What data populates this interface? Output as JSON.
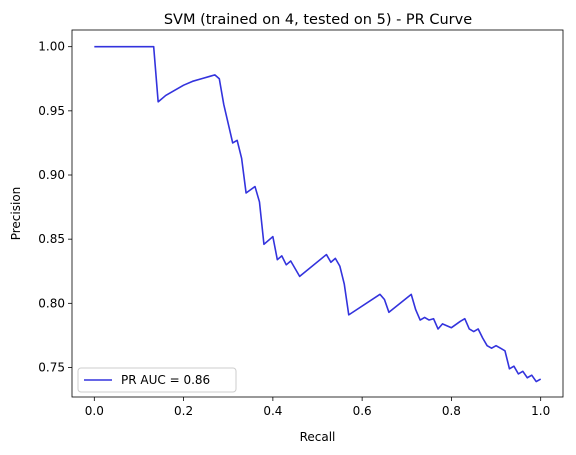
{
  "chart_data": {
    "type": "line",
    "title": "SVM (trained on 4, tested on 5) -  PR Curve",
    "xlabel": "Recall",
    "ylabel": "Precision",
    "xlim": [
      -0.05,
      1.05
    ],
    "ylim": [
      0.727,
      1.013
    ],
    "x_ticks": [
      0.0,
      0.2,
      0.4,
      0.6,
      0.8,
      1.0
    ],
    "x_tick_labels": [
      "0.0",
      "0.2",
      "0.4",
      "0.6",
      "0.8",
      "1.0"
    ],
    "y_ticks": [
      0.75,
      0.8,
      0.85,
      0.9,
      0.95,
      1.0
    ],
    "y_tick_labels": [
      "0.75",
      "0.80",
      "0.85",
      "0.90",
      "0.95",
      "1.00"
    ],
    "grid": false,
    "legend_position": "lower-left",
    "series": [
      {
        "name": "PR AUC = 0.86",
        "color": "#3333dd",
        "x": [
          0.0,
          0.133,
          0.143,
          0.16,
          0.18,
          0.2,
          0.22,
          0.24,
          0.26,
          0.27,
          0.28,
          0.29,
          0.3,
          0.31,
          0.32,
          0.33,
          0.34,
          0.36,
          0.37,
          0.38,
          0.4,
          0.41,
          0.42,
          0.43,
          0.44,
          0.46,
          0.52,
          0.53,
          0.54,
          0.55,
          0.56,
          0.57,
          0.64,
          0.65,
          0.66,
          0.71,
          0.72,
          0.73,
          0.74,
          0.75,
          0.76,
          0.77,
          0.78,
          0.8,
          0.82,
          0.83,
          0.84,
          0.85,
          0.86,
          0.87,
          0.88,
          0.89,
          0.9,
          0.91,
          0.92,
          0.93,
          0.94,
          0.95,
          0.96,
          0.97,
          0.98,
          0.99,
          1.0
        ],
        "y": [
          1.0,
          1.0,
          0.957,
          0.962,
          0.966,
          0.97,
          0.973,
          0.975,
          0.977,
          0.978,
          0.975,
          0.955,
          0.94,
          0.925,
          0.927,
          0.913,
          0.886,
          0.891,
          0.879,
          0.846,
          0.852,
          0.834,
          0.837,
          0.83,
          0.833,
          0.821,
          0.838,
          0.832,
          0.835,
          0.829,
          0.815,
          0.791,
          0.807,
          0.803,
          0.793,
          0.807,
          0.795,
          0.787,
          0.789,
          0.787,
          0.788,
          0.78,
          0.784,
          0.781,
          0.786,
          0.788,
          0.78,
          0.778,
          0.78,
          0.773,
          0.767,
          0.765,
          0.767,
          0.765,
          0.763,
          0.749,
          0.751,
          0.745,
          0.747,
          0.742,
          0.744,
          0.739,
          0.741
        ]
      }
    ]
  }
}
